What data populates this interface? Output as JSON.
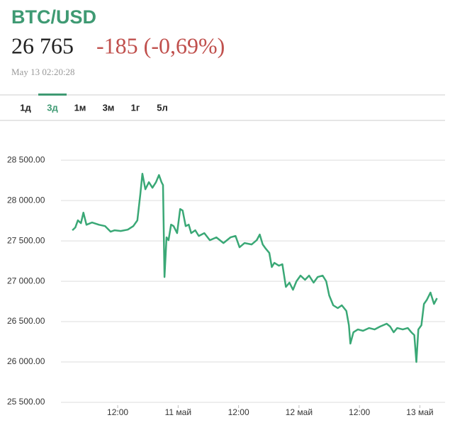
{
  "header": {
    "symbol": "BTC/USD",
    "price": "26 765",
    "change": "-185 (-0,69%)",
    "timestamp": "May 13 02:20:28"
  },
  "tabs": [
    "1д",
    "3д",
    "1м",
    "3м",
    "1г",
    "5л"
  ],
  "active_tab": 1,
  "chart_data": {
    "type": "line",
    "color": "#3aa876",
    "grid": true,
    "x": [
      3.0,
      3.6,
      4.1,
      4.7,
      5.2,
      5.8,
      6.9,
      8.3,
      9.5,
      10.6,
      11.4,
      12.6,
      14.0,
      15.1,
      15.9,
      16.5,
      16.9,
      17.5,
      18.2,
      18.9,
      19.6,
      20.2,
      20.7,
      21.0,
      21.3,
      21.7,
      22.1,
      22.6,
      23.1,
      23.8,
      24.4,
      24.9,
      25.5,
      26.1,
      26.6,
      27.4,
      28.1,
      29.2,
      30.3,
      31.6,
      33.0,
      34.4,
      35.4,
      36.2,
      37.2,
      38.6,
      39.6,
      40.2,
      40.8,
      41.4,
      42.1,
      42.6,
      43.1,
      44.0,
      44.7,
      45.4,
      46.1,
      46.8,
      47.5,
      48.3,
      49.2,
      50.0,
      50.9,
      51.7,
      52.7,
      53.4,
      54.0,
      54.8,
      55.7,
      56.5,
      57.4,
      57.9,
      58.2,
      58.8,
      59.7,
      60.7,
      61.9,
      63.0,
      64.1,
      65.4,
      66.1,
      66.8,
      67.5,
      68.6,
      69.6,
      70.3,
      70.9,
      71.3,
      71.7,
      72.3,
      72.8,
      73.4,
      74.1,
      74.8,
      75.4
    ],
    "values": [
      27632,
      27667,
      27755,
      27720,
      27850,
      27700,
      27728,
      27700,
      27684,
      27614,
      27632,
      27623,
      27640,
      27684,
      27755,
      28079,
      28333,
      28140,
      28228,
      28158,
      28228,
      28316,
      28228,
      28193,
      27053,
      27544,
      27509,
      27702,
      27684,
      27597,
      27895,
      27877,
      27684,
      27702,
      27597,
      27632,
      27562,
      27597,
      27509,
      27544,
      27474,
      27544,
      27562,
      27421,
      27474,
      27456,
      27509,
      27579,
      27456,
      27404,
      27351,
      27176,
      27228,
      27193,
      27211,
      26930,
      26983,
      26895,
      27000,
      27070,
      27018,
      27070,
      26983,
      27053,
      27070,
      27000,
      26825,
      26702,
      26667,
      26702,
      26632,
      26456,
      26228,
      26368,
      26403,
      26386,
      26421,
      26403,
      26439,
      26474,
      26439,
      26368,
      26421,
      26403,
      26421,
      26368,
      26333,
      26000,
      26403,
      26456,
      26719,
      26772,
      26860,
      26719,
      26790
    ],
    "xlim": [
      1.3,
      77
    ],
    "xticks": [
      {
        "value": 12,
        "label": "12:00"
      },
      {
        "value": 24,
        "label": "11 май"
      },
      {
        "value": 36,
        "label": "12:00"
      },
      {
        "value": 48,
        "label": "12 май"
      },
      {
        "value": 60,
        "label": "12:00"
      },
      {
        "value": 72,
        "label": "13 май"
      }
    ],
    "ylim": [
      25500,
      28800
    ],
    "yticks": [
      {
        "value": 25500,
        "label": "25 500.00"
      },
      {
        "value": 26000,
        "label": "26 000.00"
      },
      {
        "value": 26500,
        "label": "26 500.00"
      },
      {
        "value": 27000,
        "label": "27 000.00"
      },
      {
        "value": 27500,
        "label": "27 500.00"
      },
      {
        "value": 28000,
        "label": "28 000.00"
      },
      {
        "value": 28500,
        "label": "28 500.00"
      }
    ]
  }
}
